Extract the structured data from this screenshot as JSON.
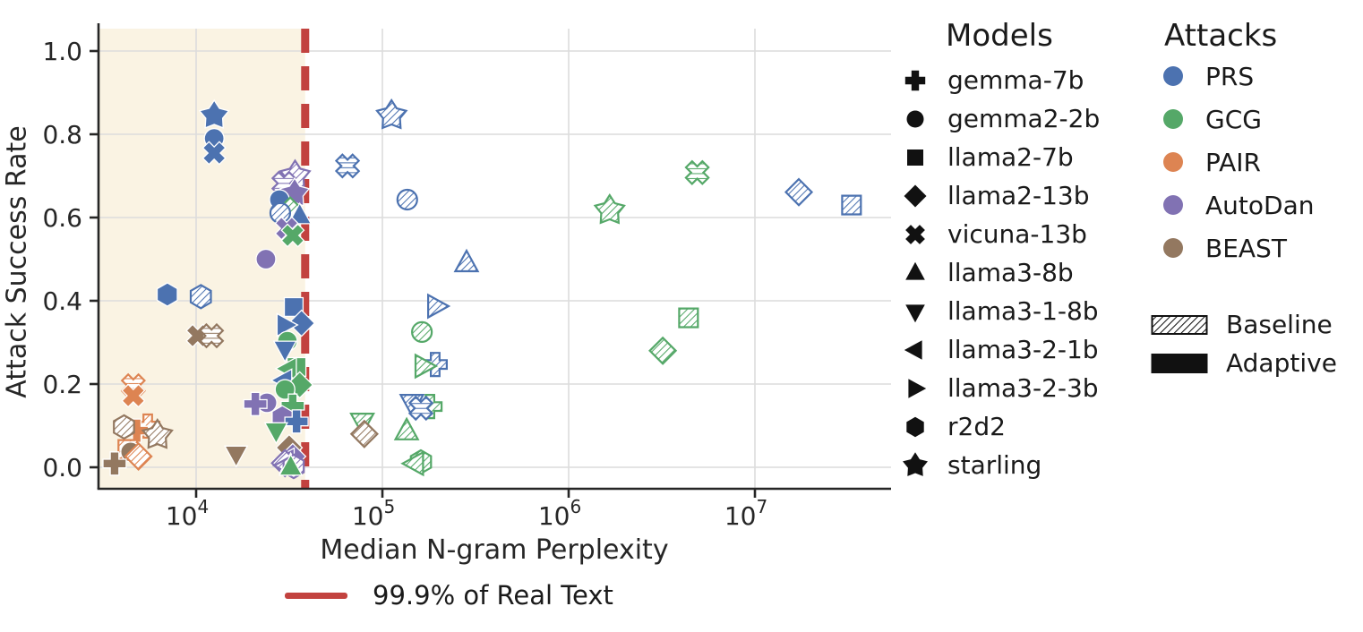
{
  "figure": {
    "models_legend_title": "Models",
    "attacks_legend_title": "Attacks",
    "threshold_legend_label": "99.9% of Real Text"
  },
  "chart_data": {
    "type": "scatter",
    "title": "",
    "xlabel": "Median N-gram Perplexity",
    "ylabel": "Attack Success Rate",
    "x_scale": "log",
    "x_ticks": [
      10000,
      100000,
      1000000,
      10000000
    ],
    "y_ticks": [
      0.0,
      0.2,
      0.4,
      0.6,
      0.8,
      1.0
    ],
    "xlim": [
      3000,
      54000000
    ],
    "ylim": [
      -0.05,
      1.06
    ],
    "grid": true,
    "axis_color": "#262626",
    "grid_color": "#dcdcdc",
    "threshold": {
      "x": 38500,
      "label": "99.9% of Real Text",
      "color": "#c2423f"
    },
    "shaded_region": {
      "x_from": 3000,
      "x_to": 38500,
      "color": "#faf3e3"
    },
    "models": [
      {
        "name": "gemma-7b",
        "marker": "plus"
      },
      {
        "name": "gemma2-2b",
        "marker": "circle"
      },
      {
        "name": "llama2-7b",
        "marker": "square"
      },
      {
        "name": "llama2-13b",
        "marker": "diamond"
      },
      {
        "name": "vicuna-13b",
        "marker": "x"
      },
      {
        "name": "llama3-8b",
        "marker": "triangle-up"
      },
      {
        "name": "llama3-1-8b",
        "marker": "triangle-down"
      },
      {
        "name": "llama3-2-1b",
        "marker": "triangle-left"
      },
      {
        "name": "llama3-2-3b",
        "marker": "triangle-right"
      },
      {
        "name": "r2d2",
        "marker": "hexagon"
      },
      {
        "name": "starling",
        "marker": "star"
      }
    ],
    "attacks": [
      {
        "name": "PRS",
        "color": "#4c72b0"
      },
      {
        "name": "GCG",
        "color": "#55a868"
      },
      {
        "name": "PAIR",
        "color": "#dd8452"
      },
      {
        "name": "AutoDan",
        "color": "#8172b3"
      },
      {
        "name": "BEAST",
        "color": "#937860"
      }
    ],
    "styles": [
      {
        "name": "Baseline",
        "fill": "hatched"
      },
      {
        "name": "Adaptive",
        "fill": "solid"
      }
    ],
    "points": [
      {
        "model": "starling",
        "attack": "PRS",
        "style": "adaptive",
        "x": 12500,
        "y": 0.845
      },
      {
        "model": "gemma2-2b",
        "attack": "PRS",
        "style": "adaptive",
        "x": 12500,
        "y": 0.79
      },
      {
        "model": "vicuna-13b",
        "attack": "PRS",
        "style": "adaptive",
        "x": 12500,
        "y": 0.755
      },
      {
        "model": "r2d2",
        "attack": "PRS",
        "style": "adaptive",
        "x": 7000,
        "y": 0.415
      },
      {
        "model": "r2d2",
        "attack": "PRS",
        "style": "baseline",
        "x": 10600,
        "y": 0.41
      },
      {
        "model": "vicuna-13b",
        "attack": "BEAST",
        "style": "adaptive",
        "x": 10200,
        "y": 0.316
      },
      {
        "model": "vicuna-13b",
        "attack": "BEAST",
        "style": "baseline",
        "x": 12100,
        "y": 0.316
      },
      {
        "model": "vicuna-13b",
        "attack": "PAIR",
        "style": "baseline",
        "x": 4600,
        "y": 0.196
      },
      {
        "model": "vicuna-13b",
        "attack": "PAIR",
        "style": "adaptive",
        "x": 4600,
        "y": 0.172
      },
      {
        "model": "gemma2-2b",
        "attack": "AutoDan",
        "style": "adaptive",
        "x": 23700,
        "y": 0.5
      },
      {
        "model": "starling",
        "attack": "AutoDan",
        "style": "baseline",
        "x": 34000,
        "y": 0.7
      },
      {
        "model": "vicuna-13b",
        "attack": "AutoDan",
        "style": "baseline",
        "x": 29600,
        "y": 0.682
      },
      {
        "model": "starling",
        "attack": "AutoDan",
        "style": "adaptive",
        "x": 33800,
        "y": 0.658
      },
      {
        "model": "gemma2-2b",
        "attack": "PRS",
        "style": "adaptive",
        "x": 28000,
        "y": 0.643
      },
      {
        "model": "llama2-13b",
        "attack": "GCG",
        "style": "baseline",
        "x": 32000,
        "y": 0.617
      },
      {
        "model": "gemma2-2b",
        "attack": "PRS",
        "style": "baseline",
        "x": 28300,
        "y": 0.611
      },
      {
        "model": "llama3-8b",
        "attack": "PRS",
        "style": "adaptive",
        "x": 36000,
        "y": 0.604
      },
      {
        "model": "vicuna-13b",
        "attack": "AutoDan",
        "style": "adaptive",
        "x": 30600,
        "y": 0.574
      },
      {
        "model": "vicuna-13b",
        "attack": "GCG",
        "style": "adaptive",
        "x": 33000,
        "y": 0.557
      },
      {
        "model": "llama2-7b",
        "attack": "PRS",
        "style": "adaptive",
        "x": 33400,
        "y": 0.385
      },
      {
        "model": "llama2-13b",
        "attack": "PRS",
        "style": "adaptive",
        "x": 36800,
        "y": 0.346
      },
      {
        "model": "llama3-2-3b",
        "attack": "PRS",
        "style": "adaptive",
        "x": 30000,
        "y": 0.342
      },
      {
        "model": "gemma2-2b",
        "attack": "GCG",
        "style": "adaptive",
        "x": 30900,
        "y": 0.303
      },
      {
        "model": "llama3-1-8b",
        "attack": "PRS",
        "style": "adaptive",
        "x": 30000,
        "y": 0.284
      },
      {
        "model": "llama2-7b",
        "attack": "GCG",
        "style": "adaptive",
        "x": 34600,
        "y": 0.241
      },
      {
        "model": "llama3-2-1b",
        "attack": "GCG",
        "style": "adaptive",
        "x": 31300,
        "y": 0.237
      },
      {
        "model": "llama3-2-1b",
        "attack": "PRS",
        "style": "adaptive",
        "x": 29600,
        "y": 0.209
      },
      {
        "model": "llama2-13b",
        "attack": "GCG",
        "style": "adaptive",
        "x": 36000,
        "y": 0.198
      },
      {
        "model": "gemma2-2b",
        "attack": "GCG",
        "style": "adaptive",
        "x": 30000,
        "y": 0.187
      },
      {
        "model": "gemma2-2b",
        "attack": "AutoDan",
        "style": "adaptive",
        "x": 24000,
        "y": 0.155
      },
      {
        "model": "gemma-7b",
        "attack": "AutoDan",
        "style": "adaptive",
        "x": 20800,
        "y": 0.152
      },
      {
        "model": "gemma-7b",
        "attack": "GCG",
        "style": "adaptive",
        "x": 33000,
        "y": 0.148
      },
      {
        "model": "r2d2",
        "attack": "AutoDan",
        "style": "adaptive",
        "x": 29000,
        "y": 0.12
      },
      {
        "model": "gemma-7b",
        "attack": "PRS",
        "style": "adaptive",
        "x": 34600,
        "y": 0.11
      },
      {
        "model": "llama3-1-8b",
        "attack": "GCG",
        "style": "adaptive",
        "x": 26900,
        "y": 0.088
      },
      {
        "model": "llama2-13b",
        "attack": "BEAST",
        "style": "adaptive",
        "x": 31600,
        "y": 0.047
      },
      {
        "model": "llama3-1-8b",
        "attack": "BEAST",
        "style": "adaptive",
        "x": 16400,
        "y": 0.032
      },
      {
        "model": "llama2-13b",
        "attack": "AutoDan",
        "style": "adaptive",
        "x": 33000,
        "y": 0.026
      },
      {
        "model": "llama3-2-1b",
        "attack": "AutoDan",
        "style": "adaptive",
        "x": 30500,
        "y": 0.019
      },
      {
        "model": "llama2-13b",
        "attack": "AutoDan",
        "style": "baseline",
        "x": 30000,
        "y": 0.01
      },
      {
        "model": "llama3-2-1b",
        "attack": "AutoDan",
        "style": "baseline",
        "x": 30700,
        "y": 0.004
      },
      {
        "model": "llama3-8b",
        "attack": "BEAST",
        "style": "adaptive",
        "x": 32200,
        "y": 0.004
      },
      {
        "model": "r2d2",
        "attack": "AutoDan",
        "style": "baseline",
        "x": 33400,
        "y": 0.002
      },
      {
        "model": "llama3-8b",
        "attack": "GCG",
        "style": "adaptive",
        "x": 32200,
        "y": 0.0
      },
      {
        "model": "gemma-7b",
        "attack": "PAIR",
        "style": "baseline",
        "x": 5500,
        "y": 0.099
      },
      {
        "model": "gemma-7b",
        "attack": "PAIR",
        "style": "adaptive",
        "x": 4800,
        "y": 0.088
      },
      {
        "model": "r2d2",
        "attack": "BEAST",
        "style": "baseline",
        "x": 4100,
        "y": 0.097
      },
      {
        "model": "starling",
        "attack": "BEAST",
        "style": "baseline",
        "x": 6200,
        "y": 0.077
      },
      {
        "model": "llama2-7b",
        "attack": "PAIR",
        "style": "baseline",
        "x": 4300,
        "y": 0.043
      },
      {
        "model": "gemma2-2b",
        "attack": "BEAST",
        "style": "adaptive",
        "x": 4450,
        "y": 0.037
      },
      {
        "model": "llama2-13b",
        "attack": "PAIR",
        "style": "baseline",
        "x": 4900,
        "y": 0.026
      },
      {
        "model": "gemma-7b",
        "attack": "BEAST",
        "style": "adaptive",
        "x": 3650,
        "y": 0.009
      },
      {
        "model": "starling",
        "attack": "PRS",
        "style": "baseline",
        "x": 112000,
        "y": 0.845
      },
      {
        "model": "vicuna-13b",
        "attack": "PRS",
        "style": "baseline",
        "x": 65000,
        "y": 0.724
      },
      {
        "model": "gemma2-2b",
        "attack": "PRS",
        "style": "baseline",
        "x": 136000,
        "y": 0.643
      },
      {
        "model": "starling",
        "attack": "GCG",
        "style": "baseline",
        "x": 1660000,
        "y": 0.617
      },
      {
        "model": "llama3-8b",
        "attack": "PRS",
        "style": "baseline",
        "x": 283000,
        "y": 0.49
      },
      {
        "model": "llama3-2-3b",
        "attack": "PRS",
        "style": "baseline",
        "x": 194000,
        "y": 0.387
      },
      {
        "model": "gemma2-2b",
        "attack": "GCG",
        "style": "baseline",
        "x": 163000,
        "y": 0.325
      },
      {
        "model": "gemma-7b",
        "attack": "PRS",
        "style": "baseline",
        "x": 192000,
        "y": 0.247
      },
      {
        "model": "llama3-2-3b",
        "attack": "GCG",
        "style": "baseline",
        "x": 166000,
        "y": 0.243
      },
      {
        "model": "llama3-1-8b",
        "attack": "PRS",
        "style": "baseline",
        "x": 144000,
        "y": 0.155
      },
      {
        "model": "gemma-7b",
        "attack": "GCG",
        "style": "baseline",
        "x": 180000,
        "y": 0.146
      },
      {
        "model": "vicuna-13b",
        "attack": "PRS",
        "style": "baseline",
        "x": 161000,
        "y": 0.142
      },
      {
        "model": "llama3-1-8b",
        "attack": "GCG",
        "style": "baseline",
        "x": 78000,
        "y": 0.11
      },
      {
        "model": "llama3-8b",
        "attack": "GCG",
        "style": "baseline",
        "x": 135000,
        "y": 0.086
      },
      {
        "model": "llama2-13b",
        "attack": "BEAST",
        "style": "baseline",
        "x": 80000,
        "y": 0.08
      },
      {
        "model": "r2d2",
        "attack": "GCG",
        "style": "baseline",
        "x": 161000,
        "y": 0.013
      },
      {
        "model": "llama3-2-1b",
        "attack": "GCG",
        "style": "baseline",
        "x": 150000,
        "y": 0.009
      },
      {
        "model": "vicuna-13b",
        "attack": "GCG",
        "style": "baseline",
        "x": 4900000,
        "y": 0.708
      },
      {
        "model": "llama2-13b",
        "attack": "PRS",
        "style": "baseline",
        "x": 17200000,
        "y": 0.661
      },
      {
        "model": "llama2-7b",
        "attack": "PRS",
        "style": "baseline",
        "x": 33000000,
        "y": 0.63
      },
      {
        "model": "llama2-7b",
        "attack": "GCG",
        "style": "baseline",
        "x": 4400000,
        "y": 0.359
      },
      {
        "model": "llama2-13b",
        "attack": "GCG",
        "style": "baseline",
        "x": 3200000,
        "y": 0.28
      }
    ]
  }
}
